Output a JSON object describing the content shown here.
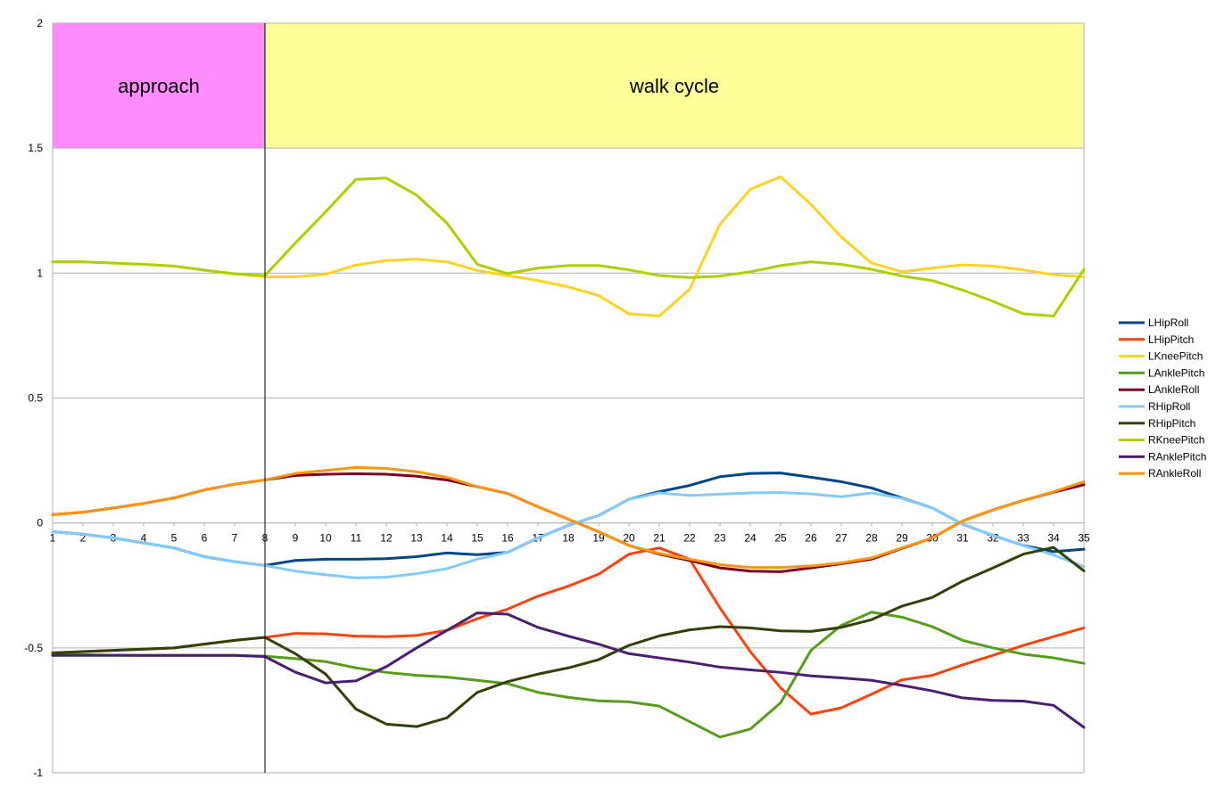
{
  "chart_data": {
    "type": "line",
    "title": "",
    "xlabel": "",
    "ylabel": "",
    "ylim": [
      -1,
      2
    ],
    "y_ticks": [
      "-1",
      "-0.5",
      "0",
      "0.5",
      "1",
      "1.5",
      "2"
    ],
    "categories": [
      "1",
      "2",
      "3",
      "4",
      "5",
      "6",
      "7",
      "8",
      "9",
      "10",
      "11",
      "12",
      "13",
      "14",
      "15",
      "16",
      "17",
      "18",
      "19",
      "20",
      "21",
      "22",
      "23",
      "24",
      "25",
      "26",
      "27",
      "28",
      "29",
      "30",
      "31",
      "32",
      "33",
      "34",
      "35"
    ],
    "grid": "horizontal",
    "legend_position": "right",
    "regions": [
      {
        "label": "approach",
        "x_start": 1,
        "x_end": 8,
        "y_start": 1.5,
        "y_end": 2,
        "color": "#ff8cff"
      },
      {
        "label": "walk cycle",
        "x_start": 8,
        "x_end": 35,
        "y_start": 1.5,
        "y_end": 2,
        "color": "#ffff99"
      }
    ],
    "vertical_line_at": 8,
    "series": [
      {
        "name": "LHipRoll",
        "color": "#004586",
        "values": [
          -0.035,
          -0.045,
          -0.06,
          -0.08,
          -0.1,
          -0.135,
          -0.155,
          -0.17,
          -0.15,
          -0.145,
          -0.145,
          -0.143,
          -0.135,
          -0.12,
          -0.127,
          -0.118,
          -0.06,
          -0.01,
          0.03,
          0.095,
          0.125,
          0.15,
          0.185,
          0.198,
          0.2,
          0.183,
          0.165,
          0.14,
          0.1,
          0.06,
          -0.005,
          -0.05,
          -0.09,
          -0.115,
          -0.105
        ]
      },
      {
        "name": "LHipPitch",
        "color": "#ff420e",
        "values": [
          -0.52,
          -0.515,
          -0.51,
          -0.505,
          -0.5,
          -0.485,
          -0.47,
          -0.458,
          -0.442,
          -0.444,
          -0.453,
          -0.455,
          -0.45,
          -0.43,
          -0.383,
          -0.345,
          -0.293,
          -0.253,
          -0.205,
          -0.125,
          -0.1,
          -0.145,
          -0.34,
          -0.515,
          -0.66,
          -0.765,
          -0.74,
          -0.685,
          -0.628,
          -0.61,
          -0.568,
          -0.53,
          -0.49,
          -0.455,
          -0.42
        ]
      },
      {
        "name": "LKneePitch",
        "color": "#ffd320",
        "values": [
          1.045,
          1.045,
          1.04,
          1.035,
          1.028,
          1.012,
          0.997,
          0.985,
          0.985,
          0.995,
          1.032,
          1.05,
          1.055,
          1.045,
          1.01,
          0.99,
          0.97,
          0.945,
          0.91,
          0.837,
          0.828,
          0.935,
          1.195,
          1.335,
          1.385,
          1.275,
          1.145,
          1.04,
          1.005,
          1.02,
          1.033,
          1.028,
          1.013,
          0.993,
          0.985
        ]
      },
      {
        "name": "LAnklePitch",
        "color": "#579d1c",
        "values": [
          -0.525,
          -0.527,
          -0.529,
          -0.53,
          -0.53,
          -0.53,
          -0.53,
          -0.533,
          -0.543,
          -0.555,
          -0.58,
          -0.598,
          -0.61,
          -0.617,
          -0.63,
          -0.643,
          -0.678,
          -0.698,
          -0.712,
          -0.716,
          -0.733,
          -0.795,
          -0.857,
          -0.825,
          -0.72,
          -0.51,
          -0.41,
          -0.357,
          -0.377,
          -0.415,
          -0.47,
          -0.5,
          -0.525,
          -0.54,
          -0.562
        ]
      },
      {
        "name": "LAnkleRoll",
        "color": "#7e0021",
        "values": [
          0.033,
          0.043,
          0.06,
          0.078,
          0.1,
          0.132,
          0.155,
          0.172,
          0.19,
          0.195,
          0.197,
          0.195,
          0.187,
          0.172,
          0.145,
          0.118,
          0.065,
          0.015,
          -0.035,
          -0.09,
          -0.125,
          -0.15,
          -0.18,
          -0.193,
          -0.195,
          -0.18,
          -0.163,
          -0.145,
          -0.102,
          -0.06,
          0.008,
          0.052,
          0.09,
          0.123,
          0.153
        ]
      },
      {
        "name": "RHipRoll",
        "color": "#83caff",
        "values": [
          -0.035,
          -0.045,
          -0.06,
          -0.08,
          -0.1,
          -0.135,
          -0.155,
          -0.17,
          -0.193,
          -0.207,
          -0.22,
          -0.217,
          -0.203,
          -0.183,
          -0.145,
          -0.118,
          -0.06,
          -0.01,
          0.03,
          0.095,
          0.12,
          0.11,
          0.115,
          0.12,
          0.122,
          0.116,
          0.105,
          0.12,
          0.098,
          0.06,
          -0.005,
          -0.05,
          -0.09,
          -0.128,
          -0.175
        ]
      },
      {
        "name": "RHipPitch",
        "color": "#314004",
        "values": [
          -0.52,
          -0.515,
          -0.51,
          -0.505,
          -0.5,
          -0.485,
          -0.47,
          -0.458,
          -0.523,
          -0.605,
          -0.745,
          -0.805,
          -0.815,
          -0.78,
          -0.678,
          -0.635,
          -0.605,
          -0.58,
          -0.547,
          -0.49,
          -0.452,
          -0.428,
          -0.415,
          -0.42,
          -0.432,
          -0.434,
          -0.418,
          -0.387,
          -0.333,
          -0.298,
          -0.233,
          -0.18,
          -0.125,
          -0.098,
          -0.192
        ]
      },
      {
        "name": "RKneePitch",
        "color": "#aecf00",
        "values": [
          1.045,
          1.045,
          1.04,
          1.035,
          1.028,
          1.012,
          0.997,
          0.99,
          1.12,
          1.245,
          1.375,
          1.38,
          1.312,
          1.2,
          1.035,
          0.998,
          1.02,
          1.03,
          1.03,
          1.013,
          0.99,
          0.982,
          0.988,
          1.005,
          1.03,
          1.045,
          1.035,
          1.015,
          0.988,
          0.97,
          0.932,
          0.887,
          0.837,
          0.828,
          1.015
        ]
      },
      {
        "name": "RAnklePitch",
        "color": "#4b1f6f",
        "values": [
          -0.53,
          -0.53,
          -0.53,
          -0.53,
          -0.53,
          -0.53,
          -0.53,
          -0.535,
          -0.597,
          -0.64,
          -0.632,
          -0.575,
          -0.5,
          -0.43,
          -0.36,
          -0.365,
          -0.418,
          -0.453,
          -0.485,
          -0.523,
          -0.54,
          -0.557,
          -0.577,
          -0.588,
          -0.598,
          -0.612,
          -0.62,
          -0.63,
          -0.65,
          -0.672,
          -0.7,
          -0.71,
          -0.713,
          -0.73,
          -0.818
        ]
      },
      {
        "name": "RAnkleRoll",
        "color": "#ff950e",
        "values": [
          0.033,
          0.043,
          0.06,
          0.078,
          0.1,
          0.132,
          0.155,
          0.172,
          0.198,
          0.21,
          0.222,
          0.218,
          0.205,
          0.183,
          0.145,
          0.118,
          0.065,
          0.015,
          -0.035,
          -0.09,
          -0.122,
          -0.145,
          -0.167,
          -0.178,
          -0.178,
          -0.172,
          -0.16,
          -0.14,
          -0.1,
          -0.06,
          0.008,
          0.052,
          0.09,
          0.125,
          0.165
        ]
      }
    ]
  }
}
